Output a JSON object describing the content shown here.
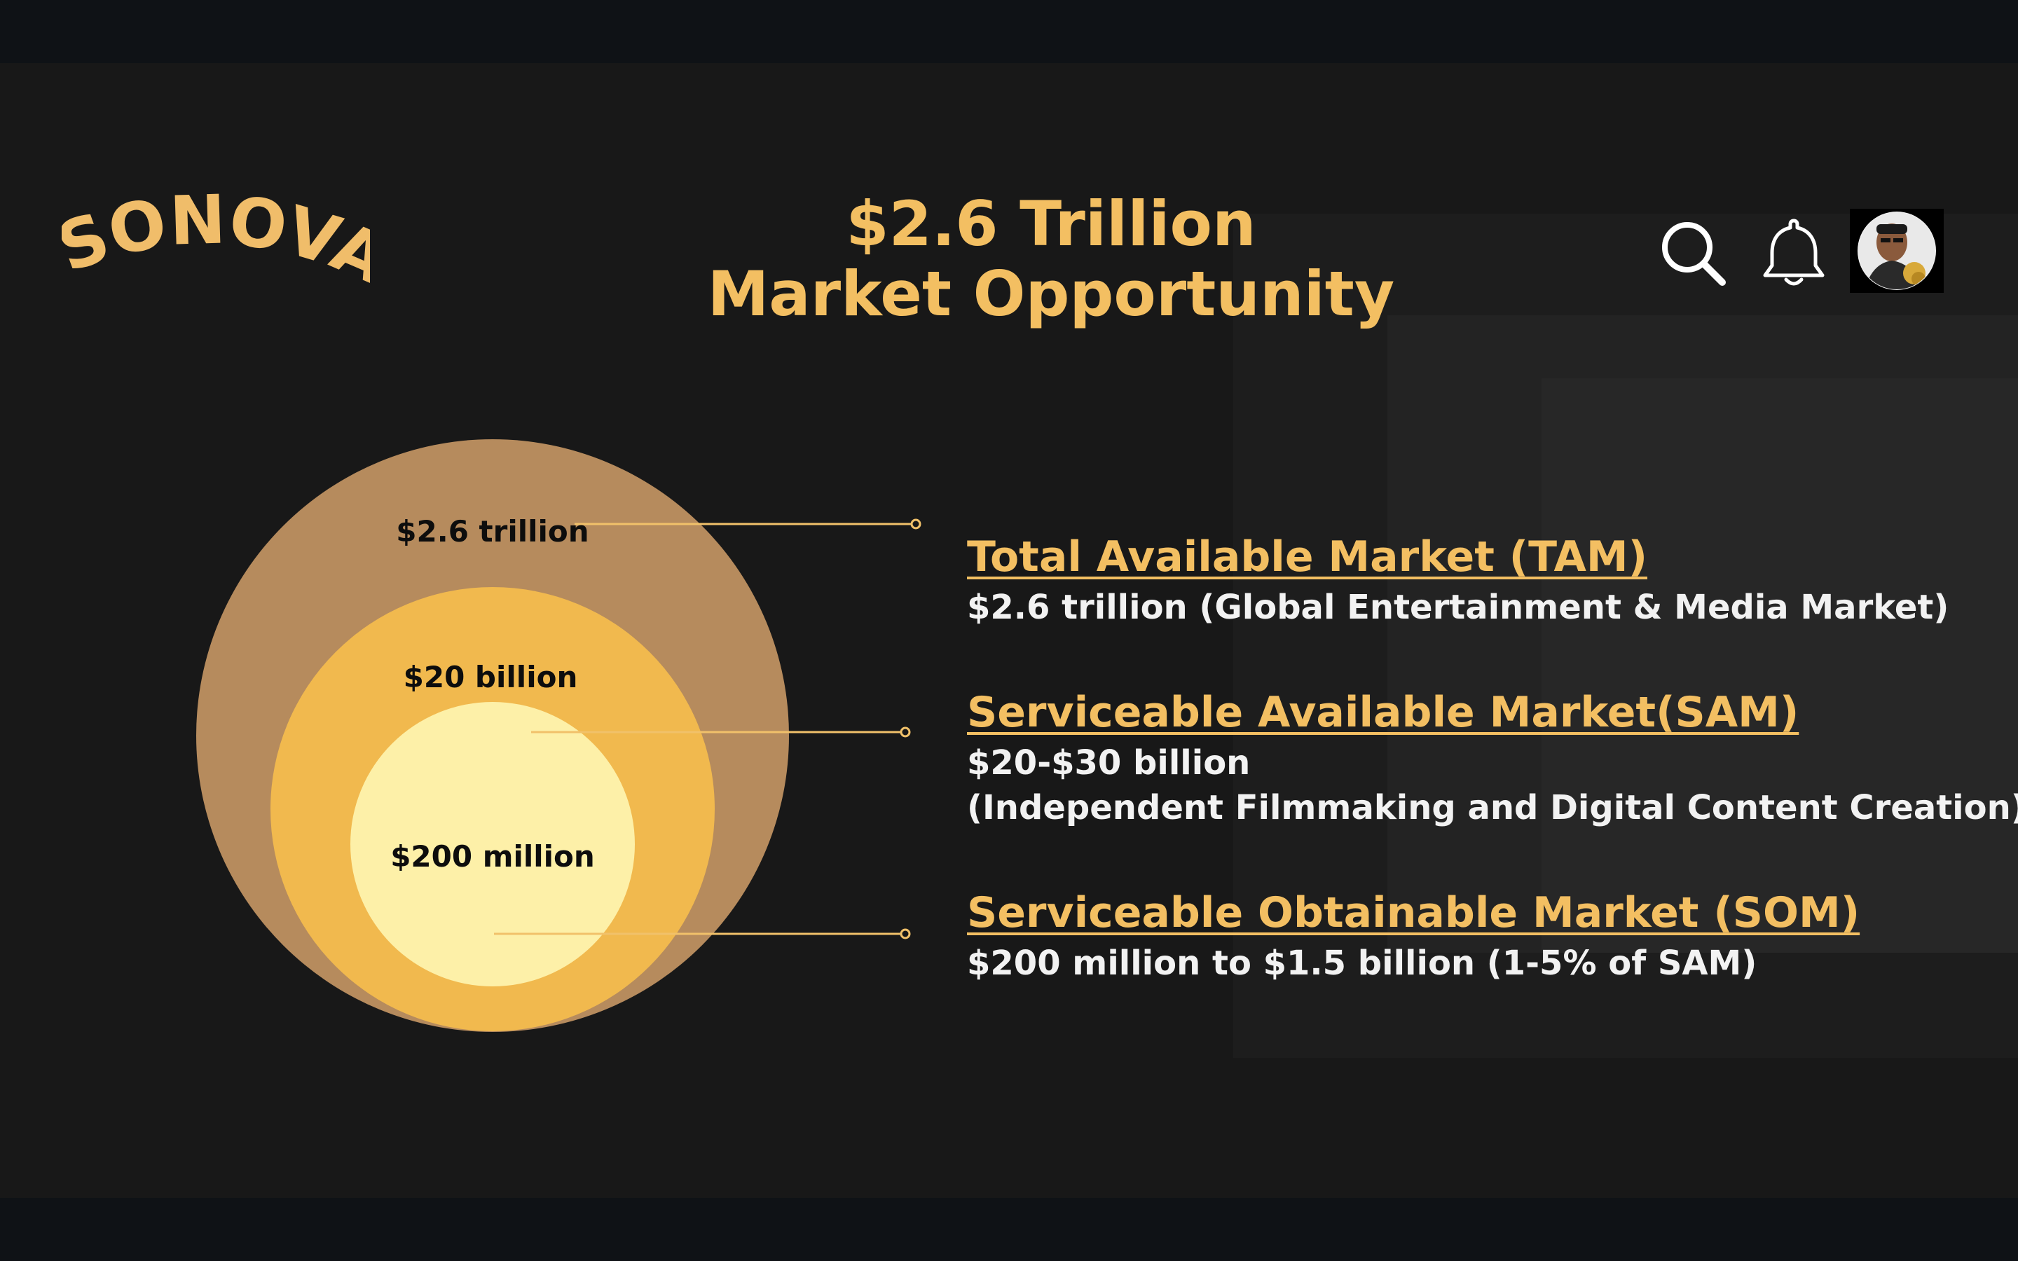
{
  "brand": {
    "logo_text": "SONOVATE"
  },
  "header": {
    "title_line1": "$2.6 Trillion",
    "title_line2": "Market Opportunity",
    "icons": [
      "search-icon",
      "bell-icon",
      "avatar"
    ]
  },
  "venn": {
    "outer_label": "$2.6 trillion",
    "middle_label": "$20 billion",
    "inner_label": "$200 million",
    "colors": {
      "outer": "#b68b5d",
      "middle": "#f1b94e",
      "inner": "#fdf0a8",
      "connector": "#f1c16a"
    }
  },
  "markets": {
    "tam": {
      "heading": "Total Available Market (TAM)",
      "desc_line1": "$2.6 trillion (Global Entertainment & Media Market)"
    },
    "sam": {
      "heading": "Serviceable Available Market(SAM)",
      "desc_line1": "$20-$30 billion",
      "desc_line2": "(Independent Filmmaking and Digital Content Creation)"
    },
    "som": {
      "heading": "Serviceable Obtainable Market (SOM)",
      "desc_line1": "$200 million to $1.5 billion (1-5% of SAM)"
    }
  },
  "theme": {
    "accent": "#f3bf62",
    "background": "#181818",
    "text": "#f2f2f2"
  }
}
